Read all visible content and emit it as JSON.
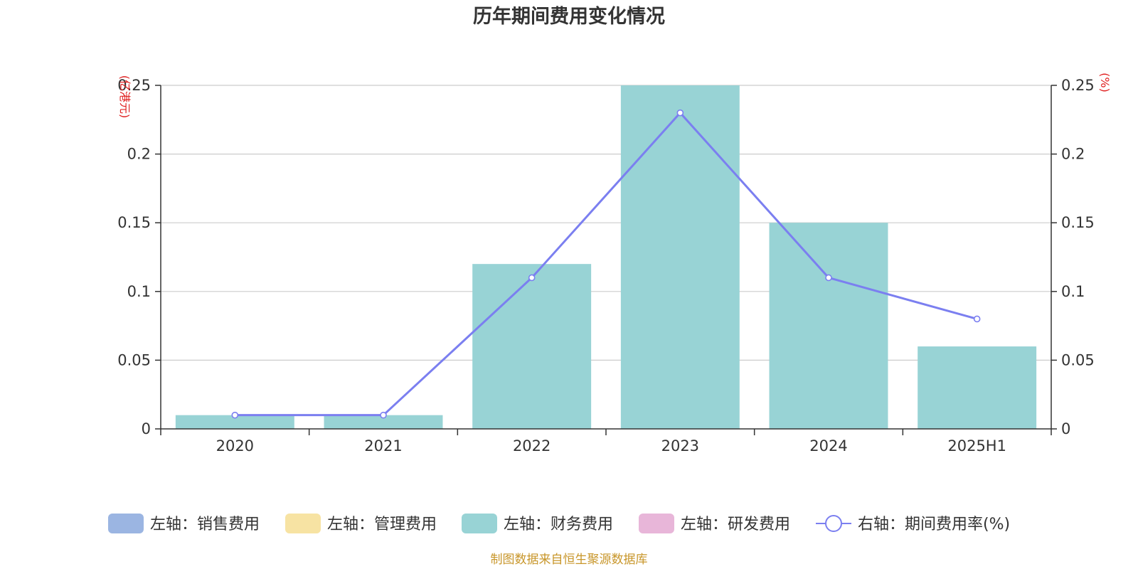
{
  "chart_data": {
    "type": "bar",
    "title": "历年期间费用变化情况",
    "categories": [
      "2020",
      "2021",
      "2022",
      "2023",
      "2024",
      "2025H1"
    ],
    "left_axis": {
      "unit": "(亿港元)",
      "ylim": [
        0,
        0.25
      ],
      "ticks": [
        "0",
        "0.05",
        "0.1",
        "0.15",
        "0.2",
        "0.25"
      ]
    },
    "right_axis": {
      "unit": "(%)",
      "ylim": [
        0,
        0.25
      ],
      "ticks": [
        "0",
        "0.05",
        "0.1",
        "0.15",
        "0.2",
        "0.25"
      ]
    },
    "series": [
      {
        "name": "左轴：销售费用",
        "axis": "left",
        "kind": "bar",
        "color": "#9bb5e2",
        "values": [
          0,
          0,
          0,
          0,
          0,
          0
        ]
      },
      {
        "name": "左轴：管理费用",
        "axis": "left",
        "kind": "bar",
        "color": "#f7e3a3",
        "values": [
          0,
          0,
          0,
          0,
          0,
          0
        ]
      },
      {
        "name": "左轴：财务费用",
        "axis": "left",
        "kind": "bar",
        "color": "#98d3d5",
        "values": [
          0.01,
          0.01,
          0.12,
          0.25,
          0.15,
          0.06
        ]
      },
      {
        "name": "左轴：研发费用",
        "axis": "left",
        "kind": "bar",
        "color": "#e8b6d9",
        "values": [
          0,
          0,
          0,
          0,
          0,
          0
        ]
      },
      {
        "name": "右轴：期间费用率(%)",
        "axis": "right",
        "kind": "line",
        "color": "#7b7ff0",
        "values": [
          0.01,
          0.01,
          0.11,
          0.23,
          0.11,
          0.08
        ]
      }
    ],
    "grid": true,
    "legend_position": "bottom"
  },
  "source_text": "制图数据来自恒生聚源数据库"
}
